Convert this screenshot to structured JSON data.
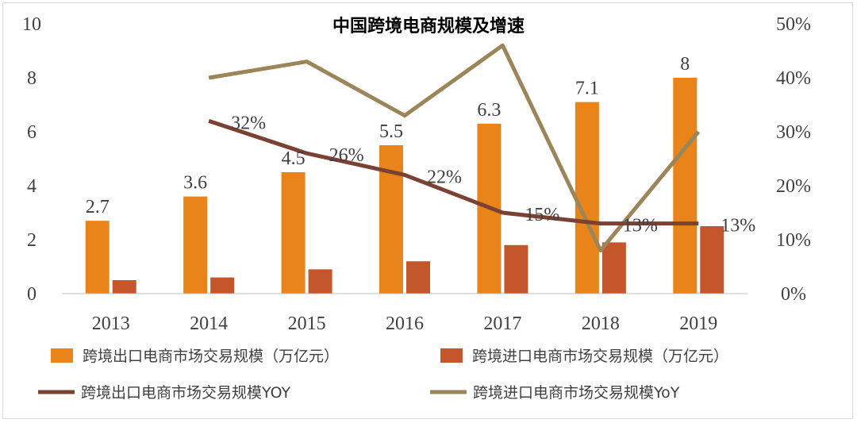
{
  "chart_data": {
    "type": "bar",
    "title": "中国跨境电商规模及增速",
    "categories": [
      "2013",
      "2014",
      "2015",
      "2016",
      "2017",
      "2018",
      "2019"
    ],
    "y_left": {
      "ticks": [
        "0",
        "2",
        "4",
        "6",
        "8",
        "10"
      ],
      "ylim": [
        0,
        10
      ]
    },
    "y_right": {
      "ticks": [
        "0%",
        "10%",
        "20%",
        "30%",
        "40%",
        "50%"
      ],
      "ylim": [
        0,
        50
      ]
    },
    "series": [
      {
        "name": "跨境出口电商市场交易规模（万亿元）",
        "kind": "bar",
        "axis": "left",
        "color": "#E8841A",
        "values": [
          2.7,
          3.6,
          4.5,
          5.5,
          6.3,
          7.1,
          8.0
        ],
        "labels": [
          "2.7",
          "3.6",
          "4.5",
          "5.5",
          "6.3",
          "7.1",
          "8"
        ]
      },
      {
        "name": "跨境进口电商市场交易规模（万亿元）",
        "kind": "bar",
        "axis": "left",
        "color": "#C4562C",
        "values": [
          0.5,
          0.6,
          0.9,
          1.2,
          1.8,
          1.9,
          2.5
        ]
      },
      {
        "name": "跨境出口电商市场交易规模YOY",
        "kind": "line",
        "axis": "right",
        "color": "#7B4133",
        "values": [
          null,
          32,
          26,
          22,
          15,
          13,
          13
        ],
        "labels": [
          "",
          "32%",
          "26%",
          "22%",
          "15%",
          "13%",
          "13%"
        ]
      },
      {
        "name": "跨境进口电商市场交易规模YoY",
        "kind": "line",
        "axis": "right",
        "color": "#9C8558",
        "values": [
          null,
          40,
          43,
          33,
          46,
          8,
          30
        ]
      }
    ],
    "grid": false,
    "legend_position": "bottom"
  }
}
